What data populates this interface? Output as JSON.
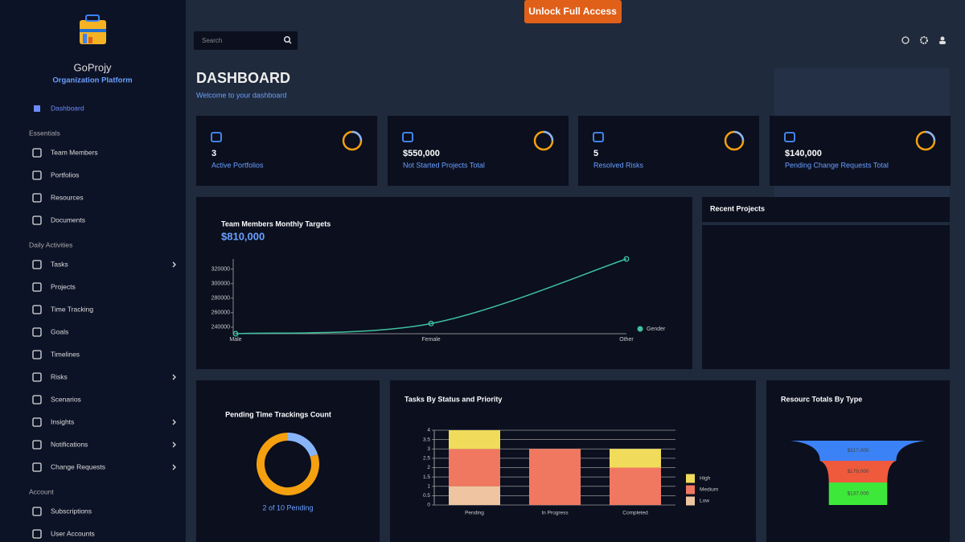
{
  "banner": {
    "button": "Unlock Full Access"
  },
  "search": {
    "placeholder": "Search"
  },
  "sidebar": {
    "brand": "GoProjy",
    "tagline": "Organization Platform",
    "active": "Dashboard",
    "sections": [
      {
        "title": "Essentials",
        "items": [
          {
            "label": "Team Members",
            "submenu": false
          },
          {
            "label": "Portfolios",
            "submenu": false
          },
          {
            "label": "Resources",
            "submenu": false
          },
          {
            "label": "Documents",
            "submenu": false
          }
        ]
      },
      {
        "title": "Daily Activities",
        "items": [
          {
            "label": "Tasks",
            "submenu": true
          },
          {
            "label": "Projects",
            "submenu": false
          },
          {
            "label": "Time Tracking",
            "submenu": false
          },
          {
            "label": "Goals",
            "submenu": false
          },
          {
            "label": "Timelines",
            "submenu": false
          },
          {
            "label": "Risks",
            "submenu": true
          },
          {
            "label": "Scenarios",
            "submenu": false
          },
          {
            "label": "Insights",
            "submenu": true
          },
          {
            "label": "Notifications",
            "submenu": true
          },
          {
            "label": "Change Requests",
            "submenu": true
          }
        ]
      },
      {
        "title": "Account",
        "items": [
          {
            "label": "Subscriptions",
            "submenu": false
          },
          {
            "label": "User Accounts",
            "submenu": false
          }
        ]
      }
    ]
  },
  "header": {
    "title": "DASHBOARD",
    "subtitle": "Welcome to your dashboard"
  },
  "stats": [
    {
      "value": "3",
      "label": "Active Portfolios"
    },
    {
      "value": "$550,000",
      "label": "Not Started Projects Total"
    },
    {
      "value": "5",
      "label": "Resolved Risks"
    },
    {
      "value": "$140,000",
      "label": "Pending Change Requests Total"
    }
  ],
  "line_chart": {
    "type": "line",
    "title": "Team Members Monthly Targets",
    "subtitle": "$810,000",
    "categories": [
      "Male",
      "Female",
      "Other"
    ],
    "series": [
      {
        "name": "Gender",
        "color": "#3fc1a0",
        "values": [
          231000,
          245000,
          334000
        ]
      }
    ],
    "ylim": [
      231000,
      334000
    ],
    "yticks": [
      240000,
      260000,
      280000,
      300000,
      320000
    ]
  },
  "recent_projects": {
    "title": "Recent Projects"
  },
  "donut": {
    "type": "doughnut",
    "title": "Pending Time Trackings Count",
    "caption": "2 of 10 Pending",
    "values": [
      2,
      8
    ],
    "colors": [
      "#8ab4f8",
      "#f5a00f"
    ]
  },
  "stacked": {
    "type": "bar",
    "stacked": true,
    "title": "Tasks By Status and Priority",
    "categories": [
      "Pending",
      "In Progress",
      "Completed"
    ],
    "series": [
      {
        "name": "Low",
        "color": "#eec5a0",
        "values": [
          1,
          0,
          0
        ]
      },
      {
        "name": "Medium",
        "color": "#f07860",
        "values": [
          2,
          3,
          2
        ]
      },
      {
        "name": "High",
        "color": "#f0dc5a",
        "values": [
          1,
          0,
          1
        ]
      }
    ],
    "ylim": [
      0,
      4
    ],
    "yticks": [
      0,
      0.5,
      1,
      1.5,
      2,
      2.5,
      3,
      3.5,
      4
    ]
  },
  "funnel": {
    "type": "funnel",
    "title": "Resourc Totals By Type",
    "values": [
      317000,
      179000,
      137000
    ],
    "value_labels": [
      "$317,000",
      "$179,000",
      "$137,000"
    ],
    "colors": [
      "#3b82f6",
      "#f05a3c",
      "#3ee83a"
    ]
  }
}
